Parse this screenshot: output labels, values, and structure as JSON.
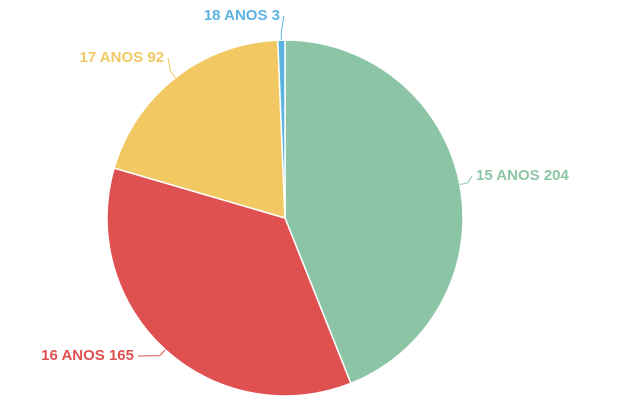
{
  "chart_data": {
    "type": "pie",
    "categories": [
      "15 ANOS",
      "16 ANOS",
      "17 ANOS",
      "18 ANOS"
    ],
    "values": [
      204,
      165,
      92,
      3
    ],
    "colors": [
      "#8cc5a5",
      "#df5150",
      "#f1c862",
      "#5ab4df"
    ]
  }
}
